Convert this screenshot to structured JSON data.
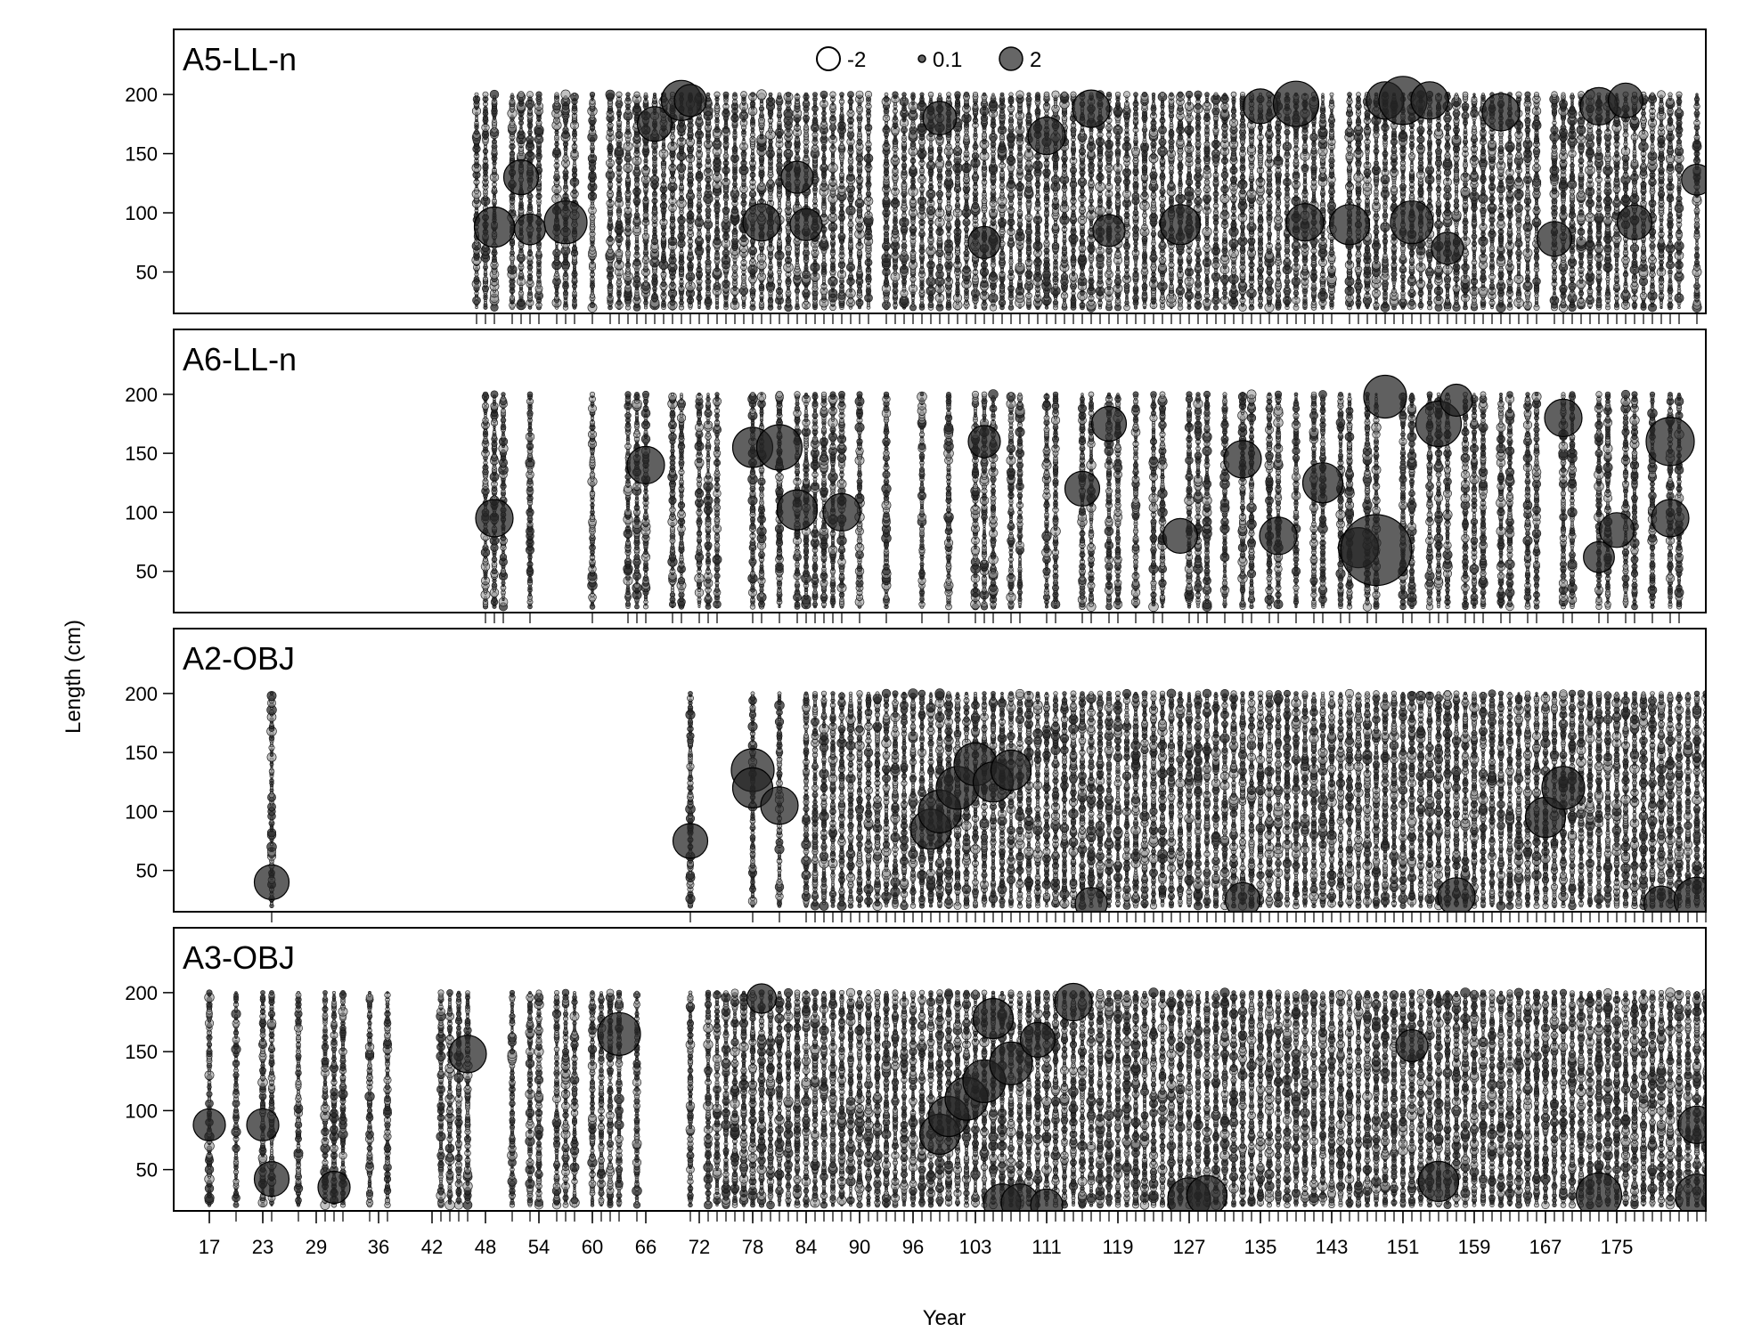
{
  "chart_data": {
    "type": "scatter",
    "subtype": "bubble",
    "title": "",
    "xlabel": "Year",
    "ylabel": "Length (cm)",
    "xlim": [
      13,
      185
    ],
    "ylim": [
      15,
      255
    ],
    "x_ticks": [
      17,
      23,
      29,
      36,
      42,
      48,
      54,
      60,
      66,
      72,
      78,
      84,
      90,
      96,
      103,
      111,
      119,
      127,
      135,
      143,
      151,
      159,
      167,
      175
    ],
    "y_ticks": [
      50,
      100,
      150,
      200
    ],
    "legend": {
      "position": "top-center",
      "entries": [
        {
          "label": "-2",
          "value": -2,
          "style": "open"
        },
        {
          "label": "0.1",
          "value": 0.1,
          "style": "filled"
        },
        {
          "label": "2",
          "value": 2,
          "style": "filled"
        }
      ]
    },
    "colors": {
      "marker": "#333333",
      "outline": "#000000"
    },
    "panels": [
      {
        "name": "A5-LL-n",
        "year_range": [
          48,
          184
        ],
        "sampled_years": [
          47,
          48,
          49,
          51,
          52,
          53,
          54,
          56,
          57,
          58,
          60,
          62,
          63,
          64,
          65,
          66,
          67,
          68,
          69,
          70,
          71,
          72,
          73,
          74,
          75,
          76,
          77,
          78,
          79,
          80,
          81,
          82,
          83,
          84,
          85,
          86,
          87,
          88,
          89,
          90,
          91,
          93,
          94,
          95,
          96,
          97,
          98,
          99,
          100,
          101,
          102,
          103,
          104,
          105,
          106,
          107,
          108,
          109,
          110,
          111,
          112,
          113,
          114,
          115,
          116,
          117,
          118,
          119,
          120,
          121,
          122,
          123,
          124,
          125,
          126,
          127,
          128,
          129,
          130,
          131,
          132,
          133,
          134,
          135,
          136,
          137,
          138,
          139,
          140,
          141,
          142,
          143,
          145,
          146,
          147,
          148,
          149,
          150,
          151,
          152,
          153,
          154,
          155,
          156,
          157,
          158,
          159,
          160,
          161,
          162,
          163,
          164,
          165,
          166,
          168,
          169,
          170,
          171,
          172,
          173,
          174,
          175,
          176,
          177,
          178,
          179,
          180,
          181,
          182,
          184
        ],
        "len_min": 20,
        "len_max": 200,
        "big_residuals": [
          {
            "year": 49,
            "length": 88,
            "residual": 2.2
          },
          {
            "year": 52,
            "length": 130,
            "residual": 1.8
          },
          {
            "year": 53,
            "length": 86,
            "residual": 1.5
          },
          {
            "year": 57,
            "length": 92,
            "residual": 2.4
          },
          {
            "year": 67,
            "length": 175,
            "residual": 1.8
          },
          {
            "year": 70,
            "length": 195,
            "residual": 2.2
          },
          {
            "year": 71,
            "length": 195,
            "residual": 1.6
          },
          {
            "year": 79,
            "length": 92,
            "residual": 2.0
          },
          {
            "year": 83,
            "length": 130,
            "residual": 1.6
          },
          {
            "year": 84,
            "length": 90,
            "residual": 1.6
          },
          {
            "year": 99,
            "length": 180,
            "residual": 1.7
          },
          {
            "year": 104,
            "length": 75,
            "residual": 1.6
          },
          {
            "year": 111,
            "length": 165,
            "residual": 2.0
          },
          {
            "year": 116,
            "length": 188,
            "residual": 2.0
          },
          {
            "year": 118,
            "length": 85,
            "residual": 1.6
          },
          {
            "year": 126,
            "length": 90,
            "residual": 2.2
          },
          {
            "year": 135,
            "length": 190,
            "residual": 1.8
          },
          {
            "year": 139,
            "length": 192,
            "residual": 2.6
          },
          {
            "year": 140,
            "length": 92,
            "residual": 2.0
          },
          {
            "year": 145,
            "length": 90,
            "residual": 2.2
          },
          {
            "year": 149,
            "length": 195,
            "residual": 2.0
          },
          {
            "year": 151,
            "length": 195,
            "residual": 2.8
          },
          {
            "year": 152,
            "length": 92,
            "residual": 2.4
          },
          {
            "year": 154,
            "length": 195,
            "residual": 2.0
          },
          {
            "year": 156,
            "length": 70,
            "residual": 1.6
          },
          {
            "year": 162,
            "length": 185,
            "residual": 2.0
          },
          {
            "year": 168,
            "length": 78,
            "residual": 1.8
          },
          {
            "year": 173,
            "length": 190,
            "residual": 2.0
          },
          {
            "year": 176,
            "length": 195,
            "residual": 1.8
          },
          {
            "year": 177,
            "length": 92,
            "residual": 1.8
          },
          {
            "year": 184,
            "length": 128,
            "residual": 1.5
          }
        ]
      },
      {
        "name": "A6-LL-n",
        "year_range": [
          48,
          183
        ],
        "sampled_years": [
          48,
          49,
          50,
          53,
          60,
          64,
          65,
          66,
          69,
          70,
          72,
          73,
          74,
          78,
          79,
          81,
          83,
          84,
          85,
          86,
          87,
          88,
          90,
          93,
          97,
          100,
          103,
          104,
          105,
          107,
          108,
          111,
          112,
          115,
          116,
          118,
          119,
          121,
          123,
          124,
          127,
          128,
          129,
          131,
          133,
          134,
          136,
          137,
          139,
          141,
          142,
          144,
          145,
          147,
          148,
          151,
          152,
          154,
          155,
          156,
          158,
          159,
          160,
          162,
          163,
          165,
          166,
          169,
          170,
          173,
          174,
          176,
          177,
          179,
          181,
          182
        ],
        "len_min": 20,
        "len_max": 200,
        "big_residuals": [
          {
            "year": 49,
            "length": 95,
            "residual": 2.0
          },
          {
            "year": 66,
            "length": 140,
            "residual": 2.0
          },
          {
            "year": 78,
            "length": 155,
            "residual": 2.2
          },
          {
            "year": 81,
            "length": 155,
            "residual": 2.6
          },
          {
            "year": 83,
            "length": 102,
            "residual": 2.2
          },
          {
            "year": 88,
            "length": 100,
            "residual": 2.0
          },
          {
            "year": 104,
            "length": 160,
            "residual": 1.6
          },
          {
            "year": 115,
            "length": 120,
            "residual": 1.8
          },
          {
            "year": 118,
            "length": 175,
            "residual": 1.8
          },
          {
            "year": 126,
            "length": 80,
            "residual": 1.8
          },
          {
            "year": 133,
            "length": 145,
            "residual": 2.0
          },
          {
            "year": 137,
            "length": 80,
            "residual": 2.0
          },
          {
            "year": 142,
            "length": 125,
            "residual": 2.2
          },
          {
            "year": 146,
            "length": 70,
            "residual": 2.2
          },
          {
            "year": 148,
            "length": 68,
            "residual": 4.5
          },
          {
            "year": 149,
            "length": 198,
            "residual": 2.4
          },
          {
            "year": 155,
            "length": 175,
            "residual": 2.6
          },
          {
            "year": 157,
            "length": 195,
            "residual": 1.6
          },
          {
            "year": 169,
            "length": 180,
            "residual": 2.0
          },
          {
            "year": 173,
            "length": 62,
            "residual": 1.5
          },
          {
            "year": 175,
            "length": 85,
            "residual": 1.8
          },
          {
            "year": 181,
            "length": 160,
            "residual": 2.8
          },
          {
            "year": 181,
            "length": 95,
            "residual": 2.0
          }
        ]
      },
      {
        "name": "A2-OBJ",
        "year_range": [
          24,
          185
        ],
        "sampled_years": [
          24,
          71,
          78,
          81,
          84,
          85,
          86,
          87,
          88,
          89,
          90,
          91,
          92,
          93,
          94,
          95,
          96,
          97,
          98,
          99,
          100,
          101,
          102,
          103,
          104,
          105,
          106,
          107,
          108,
          109,
          110,
          111,
          112,
          113,
          114,
          115,
          116,
          117,
          118,
          119,
          120,
          121,
          122,
          123,
          124,
          125,
          126,
          127,
          128,
          129,
          130,
          131,
          132,
          133,
          134,
          135,
          136,
          137,
          138,
          139,
          140,
          141,
          142,
          143,
          144,
          145,
          146,
          147,
          148,
          149,
          150,
          151,
          152,
          153,
          154,
          155,
          156,
          157,
          158,
          159,
          160,
          161,
          162,
          163,
          164,
          165,
          166,
          167,
          168,
          169,
          170,
          171,
          172,
          173,
          174,
          175,
          176,
          177,
          178,
          179,
          180,
          181,
          182,
          183,
          184,
          185
        ],
        "len_min": 20,
        "len_max": 200,
        "big_residuals": [
          {
            "year": 24,
            "length": 40,
            "residual": 1.8
          },
          {
            "year": 71,
            "length": 75,
            "residual": 1.8
          },
          {
            "year": 78,
            "length": 135,
            "residual": 2.4
          },
          {
            "year": 78,
            "length": 120,
            "residual": 2.2
          },
          {
            "year": 81,
            "length": 105,
            "residual": 2.0
          },
          {
            "year": 98,
            "length": 85,
            "residual": 2.2
          },
          {
            "year": 99,
            "length": 100,
            "residual": 2.4
          },
          {
            "year": 101,
            "length": 120,
            "residual": 2.4
          },
          {
            "year": 103,
            "length": 140,
            "residual": 2.4
          },
          {
            "year": 105,
            "length": 125,
            "residual": 2.2
          },
          {
            "year": 107,
            "length": 135,
            "residual": 2.2
          },
          {
            "year": 116,
            "length": 22,
            "residual": 1.6
          },
          {
            "year": 133,
            "length": 25,
            "residual": 1.8
          },
          {
            "year": 157,
            "length": 28,
            "residual": 2.0
          },
          {
            "year": 167,
            "length": 95,
            "residual": 2.2
          },
          {
            "year": 169,
            "length": 120,
            "residual": 2.4
          },
          {
            "year": 180,
            "length": 22,
            "residual": 1.8
          },
          {
            "year": 184,
            "length": 25,
            "residual": 2.6
          }
        ]
      },
      {
        "name": "A3-OBJ",
        "year_range": [
          17,
          185
        ],
        "sampled_years": [
          17,
          20,
          23,
          24,
          27,
          30,
          31,
          32,
          35,
          37,
          43,
          44,
          45,
          46,
          51,
          53,
          54,
          56,
          57,
          58,
          60,
          61,
          62,
          63,
          65,
          71,
          73,
          74,
          75,
          76,
          77,
          78,
          79,
          80,
          81,
          82,
          83,
          84,
          85,
          86,
          87,
          88,
          89,
          90,
          91,
          92,
          93,
          94,
          95,
          96,
          97,
          98,
          99,
          100,
          101,
          102,
          103,
          104,
          105,
          106,
          107,
          108,
          109,
          110,
          111,
          112,
          113,
          114,
          115,
          116,
          117,
          118,
          119,
          120,
          121,
          122,
          123,
          124,
          125,
          126,
          127,
          128,
          129,
          130,
          131,
          132,
          133,
          134,
          135,
          136,
          137,
          138,
          139,
          140,
          141,
          142,
          143,
          144,
          145,
          146,
          147,
          148,
          149,
          150,
          151,
          152,
          153,
          154,
          155,
          156,
          157,
          158,
          159,
          160,
          161,
          162,
          163,
          164,
          165,
          166,
          167,
          168,
          169,
          170,
          171,
          172,
          173,
          174,
          175,
          176,
          177,
          178,
          179,
          180,
          181,
          182,
          183,
          184,
          185
        ],
        "len_min": 20,
        "len_max": 200,
        "big_residuals": [
          {
            "year": 17,
            "length": 88,
            "residual": 1.6
          },
          {
            "year": 23,
            "length": 88,
            "residual": 1.6
          },
          {
            "year": 24,
            "length": 42,
            "residual": 1.8
          },
          {
            "year": 31,
            "length": 35,
            "residual": 1.6
          },
          {
            "year": 46,
            "length": 148,
            "residual": 2.0
          },
          {
            "year": 63,
            "length": 165,
            "residual": 2.4
          },
          {
            "year": 79,
            "length": 195,
            "residual": 1.4
          },
          {
            "year": 99,
            "length": 80,
            "residual": 2.2
          },
          {
            "year": 100,
            "length": 95,
            "residual": 2.2
          },
          {
            "year": 102,
            "length": 110,
            "residual": 2.4
          },
          {
            "year": 104,
            "length": 125,
            "residual": 2.4
          },
          {
            "year": 105,
            "length": 178,
            "residual": 2.2
          },
          {
            "year": 106,
            "length": 22,
            "residual": 2.0
          },
          {
            "year": 107,
            "length": 140,
            "residual": 2.4
          },
          {
            "year": 108,
            "length": 22,
            "residual": 2.0
          },
          {
            "year": 110,
            "length": 160,
            "residual": 1.8
          },
          {
            "year": 111,
            "length": 20,
            "residual": 1.6
          },
          {
            "year": 114,
            "length": 192,
            "residual": 2.0
          },
          {
            "year": 127,
            "length": 25,
            "residual": 2.4
          },
          {
            "year": 129,
            "length": 28,
            "residual": 2.2
          },
          {
            "year": 152,
            "length": 155,
            "residual": 1.6
          },
          {
            "year": 155,
            "length": 40,
            "residual": 2.2
          },
          {
            "year": 173,
            "length": 28,
            "residual": 2.6
          },
          {
            "year": 184,
            "length": 28,
            "residual": 2.4
          },
          {
            "year": 184,
            "length": 88,
            "residual": 2.0
          }
        ]
      }
    ]
  }
}
